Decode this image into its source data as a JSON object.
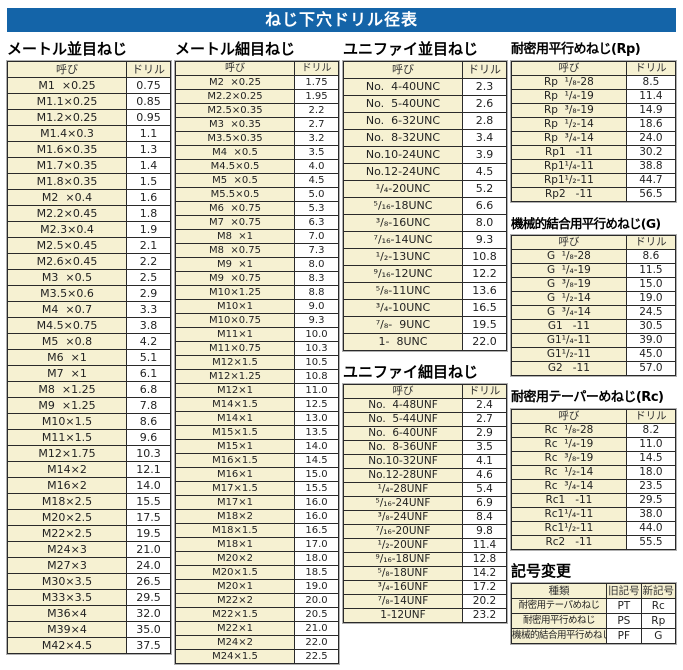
{
  "page": {
    "title": "ねじ下穴ドリル径表"
  },
  "colors": {
    "banner_blue": "#1464a8",
    "cell_cream": "#f6f1d2",
    "grid_line": "#2a2a2a"
  },
  "labels": {
    "name_col": "呼び",
    "drill_col": "ドリル"
  },
  "tables": {
    "metric_coarse": {
      "title": "メートル並目ねじ",
      "rows": [
        [
          "M1  ×0.25",
          "0.75"
        ],
        [
          "M1.1×0.25",
          "0.85"
        ],
        [
          "M1.2×0.25",
          "0.95"
        ],
        [
          "M1.4×0.3",
          "1.1"
        ],
        [
          "M1.6×0.35",
          "1.3"
        ],
        [
          "M1.7×0.35",
          "1.4"
        ],
        [
          "M1.8×0.35",
          "1.5"
        ],
        [
          "M2  ×0.4",
          "1.6"
        ],
        [
          "M2.2×0.45",
          "1.8"
        ],
        [
          "M2.3×0.4",
          "1.9"
        ],
        [
          "M2.5×0.45",
          "2.1"
        ],
        [
          "M2.6×0.45",
          "2.2"
        ],
        [
          "M3  ×0.5",
          "2.5"
        ],
        [
          "M3.5×0.6",
          "2.9"
        ],
        [
          "M4  ×0.7",
          "3.3"
        ],
        [
          "M4.5×0.75",
          "3.8"
        ],
        [
          "M5  ×0.8",
          "4.2"
        ],
        [
          "M6  ×1",
          "5.1"
        ],
        [
          "M7  ×1",
          "6.1"
        ],
        [
          "M8  ×1.25",
          "6.8"
        ],
        [
          "M9  ×1.25",
          "7.8"
        ],
        [
          "M10×1.5",
          "8.6"
        ],
        [
          "M11×1.5",
          "9.6"
        ],
        [
          "M12×1.75",
          "10.3"
        ],
        [
          "M14×2",
          "12.1"
        ],
        [
          "M16×2",
          "14.0"
        ],
        [
          "M18×2.5",
          "15.5"
        ],
        [
          "M20×2.5",
          "17.5"
        ],
        [
          "M22×2.5",
          "19.5"
        ],
        [
          "M24×3",
          "21.0"
        ],
        [
          "M27×3",
          "24.0"
        ],
        [
          "M30×3.5",
          "26.5"
        ],
        [
          "M33×3.5",
          "29.5"
        ],
        [
          "M36×4",
          "32.0"
        ],
        [
          "M39×4",
          "35.0"
        ],
        [
          "M42×4.5",
          "37.5"
        ]
      ]
    },
    "metric_fine": {
      "title": "メートル細目ねじ",
      "rows": [
        [
          "M2  ×0.25",
          "1.75"
        ],
        [
          "M2.2×0.25",
          "1.95"
        ],
        [
          "M2.5×0.35",
          "2.2"
        ],
        [
          "M3  ×0.35",
          "2.7"
        ],
        [
          "M3.5×0.35",
          "3.2"
        ],
        [
          "M4  ×0.5",
          "3.5"
        ],
        [
          "M4.5×0.5",
          "4.0"
        ],
        [
          "M5  ×0.5",
          "4.5"
        ],
        [
          "M5.5×0.5",
          "5.0"
        ],
        [
          "M6  ×0.75",
          "5.3"
        ],
        [
          "M7  ×0.75",
          "6.3"
        ],
        [
          "M8  ×1",
          "7.0"
        ],
        [
          "M8  ×0.75",
          "7.3"
        ],
        [
          "M9  ×1",
          "8.0"
        ],
        [
          "M9  ×0.75",
          "8.3"
        ],
        [
          "M10×1.25",
          "8.8"
        ],
        [
          "M10×1",
          "9.0"
        ],
        [
          "M10×0.75",
          "9.3"
        ],
        [
          "M11×1",
          "10.0"
        ],
        [
          "M11×0.75",
          "10.3"
        ],
        [
          "M12×1.5",
          "10.5"
        ],
        [
          "M12×1.25",
          "10.8"
        ],
        [
          "M12×1",
          "11.0"
        ],
        [
          "M14×1.5",
          "12.5"
        ],
        [
          "M14×1",
          "13.0"
        ],
        [
          "M15×1.5",
          "13.5"
        ],
        [
          "M15×1",
          "14.0"
        ],
        [
          "M16×1.5",
          "14.5"
        ],
        [
          "M16×1",
          "15.0"
        ],
        [
          "M17×1.5",
          "15.5"
        ],
        [
          "M17×1",
          "16.0"
        ],
        [
          "M18×2",
          "16.0"
        ],
        [
          "M18×1.5",
          "16.5"
        ],
        [
          "M18×1",
          "17.0"
        ],
        [
          "M20×2",
          "18.0"
        ],
        [
          "M20×1.5",
          "18.5"
        ],
        [
          "M20×1",
          "19.0"
        ],
        [
          "M22×2",
          "20.0"
        ],
        [
          "M22×1.5",
          "20.5"
        ],
        [
          "M22×1",
          "21.0"
        ],
        [
          "M24×2",
          "22.0"
        ],
        [
          "M24×1.5",
          "22.5"
        ]
      ]
    },
    "unified_coarse": {
      "title": "ユニファイ並目ねじ",
      "rows": [
        [
          "No.  4-40UNC",
          "2.3"
        ],
        [
          "No.  5-40UNC",
          "2.6"
        ],
        [
          "No.  6-32UNC",
          "2.8"
        ],
        [
          "No.  8-32UNC",
          "3.4"
        ],
        [
          "No.10-24UNC",
          "3.9"
        ],
        [
          "No.12-24UNC",
          "4.5"
        ],
        [
          "¹/₄-20UNC",
          "5.2"
        ],
        [
          "⁵/₁₆-18UNC",
          "6.6"
        ],
        [
          "³/₈-16UNC",
          "8.0"
        ],
        [
          "⁷/₁₆-14UNC",
          "9.3"
        ],
        [
          "¹/₂-13UNC",
          "10.8"
        ],
        [
          "⁹/₁₆-12UNC",
          "12.2"
        ],
        [
          "⁵/₈-11UNC",
          "13.6"
        ],
        [
          "³/₄-10UNC",
          "16.5"
        ],
        [
          "⁷/₈-  9UNC",
          "19.5"
        ],
        [
          "1-  8UNC",
          "22.0"
        ]
      ]
    },
    "unified_fine": {
      "title": "ユニファイ細目ねじ",
      "rows": [
        [
          "No.  4-48UNF",
          "2.4"
        ],
        [
          "No.  5-44UNF",
          "2.7"
        ],
        [
          "No.  6-40UNF",
          "2.9"
        ],
        [
          "No.  8-36UNF",
          "3.5"
        ],
        [
          "No.10-32UNF",
          "4.1"
        ],
        [
          "No.12-28UNF",
          "4.6"
        ],
        [
          "¹/₄-28UNF",
          "5.4"
        ],
        [
          "⁵/₁₆-24UNF",
          "6.9"
        ],
        [
          "³/₈-24UNF",
          "8.4"
        ],
        [
          "⁷/₁₆-20UNF",
          "9.8"
        ],
        [
          "¹/₂-20UNF",
          "11.4"
        ],
        [
          "⁹/₁₆-18UNF",
          "12.8"
        ],
        [
          "⁵/₈-18UNF",
          "14.2"
        ],
        [
          "³/₄-16UNF",
          "17.2"
        ],
        [
          "⁷/₈-14UNF",
          "20.2"
        ],
        [
          "1-12UNF",
          "23.2"
        ]
      ]
    },
    "rp": {
      "title": "耐密用平行めねじ(Rp)",
      "rows": [
        [
          "Rp  ¹/₈-28",
          "8.5"
        ],
        [
          "Rp  ¹/₄-19",
          "11.4"
        ],
        [
          "Rp  ³/₈-19",
          "14.9"
        ],
        [
          "Rp  ¹/₂-14",
          "18.6"
        ],
        [
          "Rp  ³/₄-14",
          "24.0"
        ],
        [
          "Rp1   -11",
          "30.2"
        ],
        [
          "Rp1¹/₄-11",
          "38.8"
        ],
        [
          "Rp1¹/₂-11",
          "44.7"
        ],
        [
          "Rp2   -11",
          "56.5"
        ]
      ]
    },
    "g": {
      "title": "機械的結合用平行めねじ(G)",
      "rows": [
        [
          "G  ¹/₈-28",
          "8.6"
        ],
        [
          "G  ¹/₄-19",
          "11.5"
        ],
        [
          "G  ³/₈-19",
          "15.0"
        ],
        [
          "G  ¹/₂-14",
          "19.0"
        ],
        [
          "G  ³/₄-14",
          "24.5"
        ],
        [
          "G1   -11",
          "30.5"
        ],
        [
          "G1¹/₄-11",
          "39.0"
        ],
        [
          "G1¹/₂-11",
          "45.0"
        ],
        [
          "G2   -11",
          "57.0"
        ]
      ]
    },
    "rc": {
      "title": "耐密用テーパーめねじ(Rc)",
      "rows": [
        [
          "Rc  ¹/₈-28",
          "8.2"
        ],
        [
          "Rc  ¹/₄-19",
          "11.0"
        ],
        [
          "Rc  ³/₈-19",
          "14.5"
        ],
        [
          "Rc  ¹/₂-14",
          "18.0"
        ],
        [
          "Rc  ³/₄-14",
          "23.5"
        ],
        [
          "Rc1   -11",
          "29.5"
        ],
        [
          "Rc1¹/₄-11",
          "38.0"
        ],
        [
          "Rc1¹/₂-11",
          "44.0"
        ],
        [
          "Rc2   -11",
          "55.5"
        ]
      ]
    }
  },
  "symbol_change": {
    "title": "記号変更",
    "headers": [
      "種類",
      "旧記号",
      "新記号"
    ],
    "rows": [
      [
        "耐密用テーパめねじ",
        "PT",
        "Rc"
      ],
      [
        "耐密用平行めねじ",
        "PS",
        "Rp"
      ],
      [
        "機械的結合用平行めねじ",
        "PF",
        "G"
      ]
    ]
  }
}
